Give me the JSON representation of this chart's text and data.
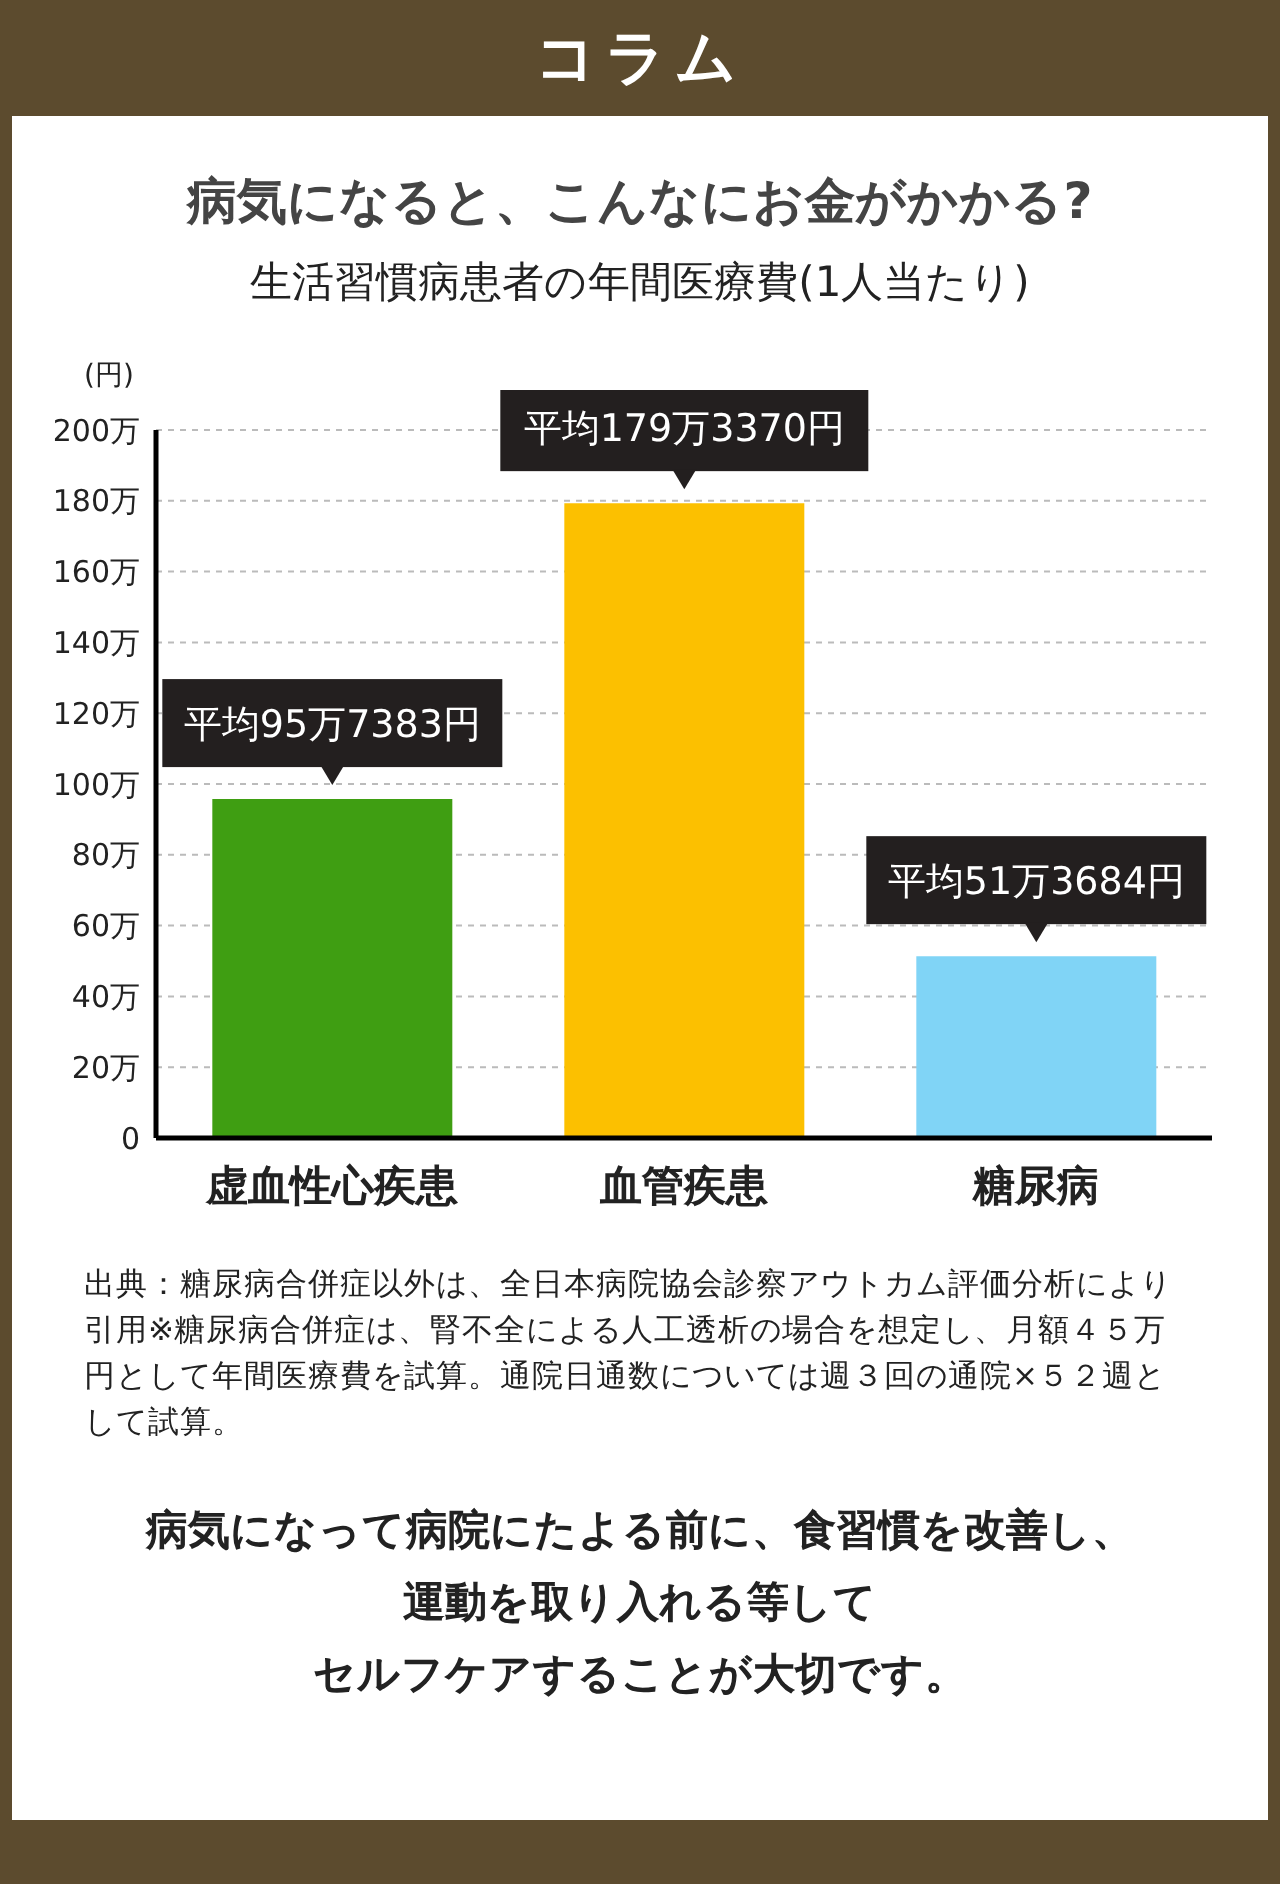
{
  "chart_data": {
    "type": "bar",
    "title": "病気になると、こんなにお金がかかる?",
    "subtitle": "生活習慣病患者の年間医療費(1人当たり)",
    "ylabel": "(円)",
    "categories": [
      "虚血性心疾患",
      "血管疾患",
      "糖尿病"
    ],
    "values": [
      95.7383,
      179.337,
      51.3684
    ],
    "colors": [
      "#3f9e12",
      "#fcc000",
      "#80d4f6"
    ],
    "value_labels": [
      "平均95万7383円",
      "平均179万3370円",
      "平均51万3684円"
    ],
    "ylim": [
      0,
      200
    ],
    "yticks": [
      0,
      {
        "value": 20,
        "label": "20万"
      },
      {
        "value": 40,
        "label": "40万"
      },
      {
        "value": 60,
        "label": "60万"
      },
      {
        "value": 80,
        "label": "80万"
      },
      {
        "value": 100,
        "label": "100万"
      },
      {
        "value": 120,
        "label": "120万"
      },
      {
        "value": 140,
        "label": "140万"
      },
      {
        "value": 160,
        "label": "160万"
      },
      {
        "value": 180,
        "label": "180万"
      },
      {
        "value": 200,
        "label": "200万"
      }
    ],
    "grid": "y",
    "legend": false,
    "annotations": [
      "コラム",
      "出典：糖尿病合併症以外は、全日本病院協会診察アウトカム評価分析により引用※糖尿病合併症は、腎不全による人工透析の場合を想定し、月額４５万円として年間医療費を試算。通院日通数については週３回の通院×５２週として試算。",
      "病気になって病院にたよる前に、食習慣を改善し、",
      "運動を取り入れる等して",
      "セルフケアすることが大切です。"
    ]
  }
}
